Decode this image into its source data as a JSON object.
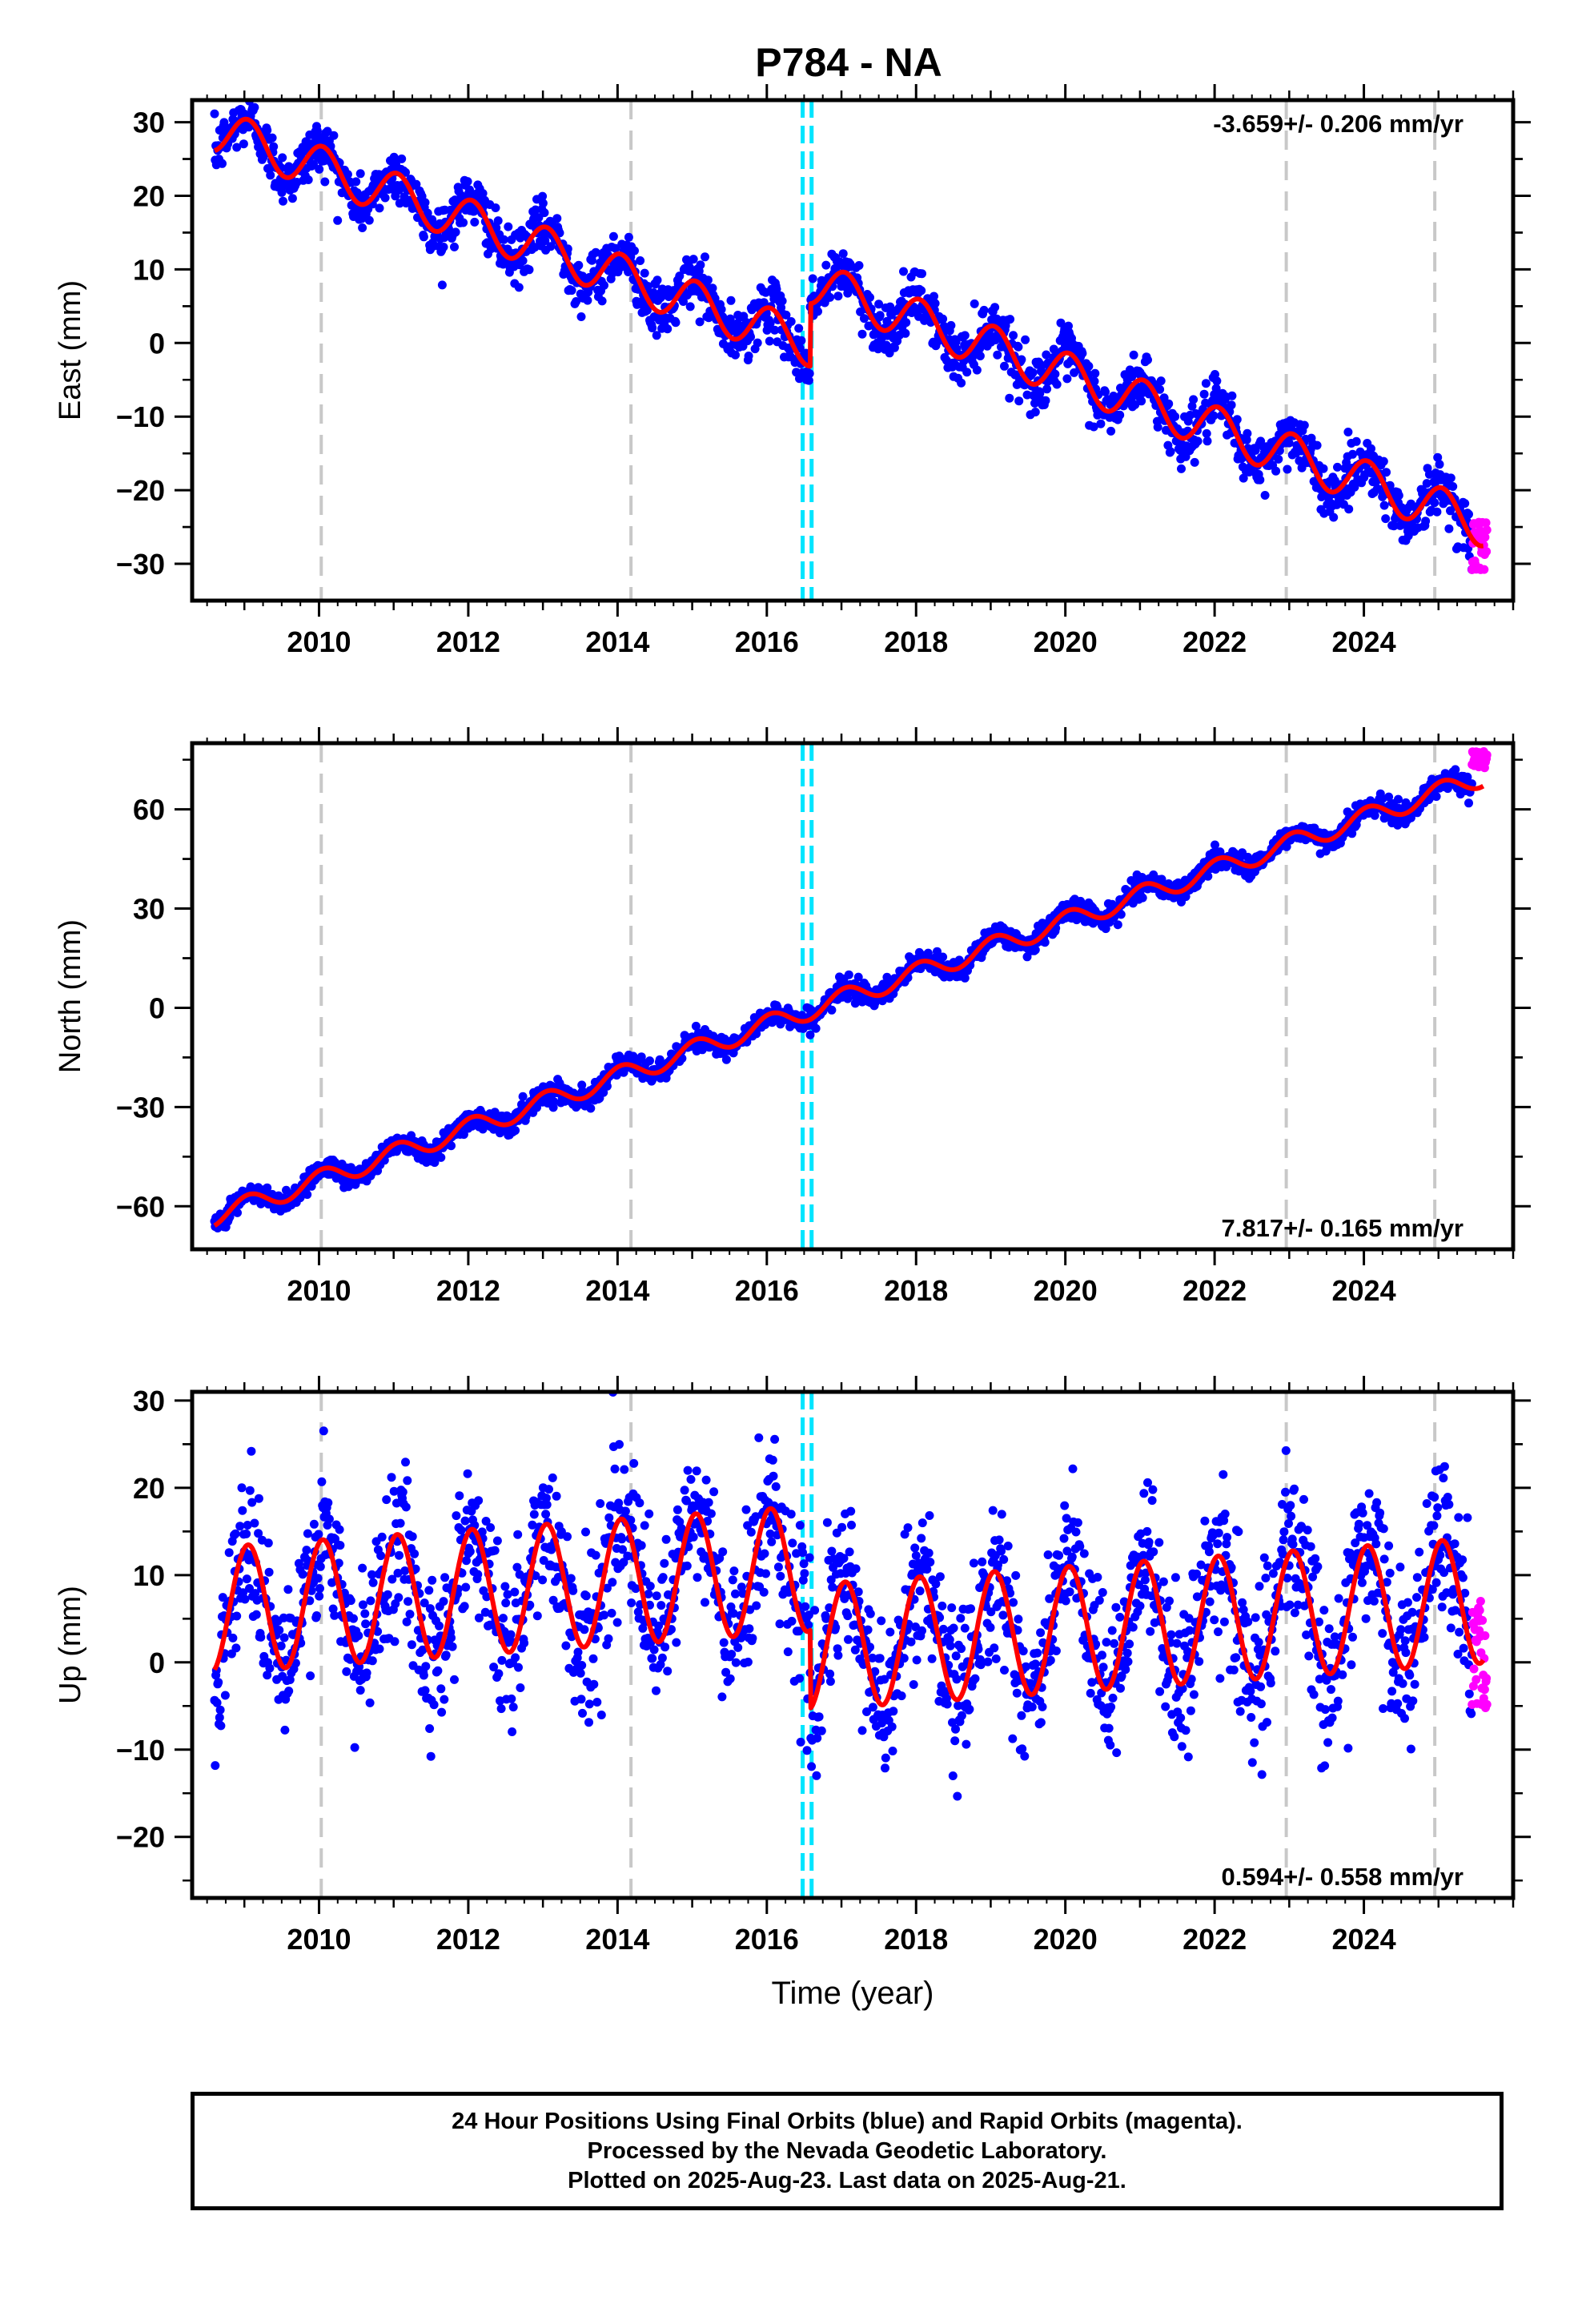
{
  "title": "P784 - NA",
  "colors": {
    "final_orbits": "#0000ff",
    "rapid_orbits": "#ff00ff",
    "model": "#ff0000",
    "antenna_change": "#c8c8c8",
    "equipment_change": "#00e5ff"
  },
  "footer": {
    "line1": "24 Hour Positions Using Final Orbits (blue) and Rapid Orbits (magenta).",
    "line2": "Processed by the Nevada Geodetic Laboratory.",
    "line3": "Plotted on 2025-Aug-23. Last data on 2025-Aug-21."
  },
  "chart_data": [
    {
      "type": "scatter",
      "component": "east",
      "ylabel": "East (mm)",
      "xlabel": "",
      "xlim": [
        2008.3,
        2026.0
      ],
      "ylim": [
        -35,
        33
      ],
      "xticks": [
        2010,
        2012,
        2014,
        2016,
        2018,
        2020,
        2022,
        2024
      ],
      "yticks": [
        -30,
        -20,
        -10,
        0,
        10,
        20,
        30
      ],
      "rate_text": "-3.659+/- 0.206 mm/yr",
      "rate_position": "top-right",
      "model": {
        "start": 2008.6,
        "end": 2025.6,
        "intercept": 29.0,
        "rate": -3.659,
        "annual_amp": 3.0,
        "annual_phase": 0.8,
        "offsets": [
          {
            "t": 2016.58,
            "dy": 8.5
          }
        ]
      },
      "scatter_spread": 1.8,
      "rapid": {
        "start": 2025.45,
        "end": 2025.65,
        "center": -27.5,
        "spread": 3.5
      },
      "vlines_gray": [
        2010.03,
        2014.18,
        2022.96,
        2024.95
      ],
      "vlines_cyan": [
        2016.48,
        2016.6
      ],
      "grid": false
    },
    {
      "type": "scatter",
      "component": "north",
      "ylabel": "North (mm)",
      "xlabel": "",
      "xlim": [
        2008.3,
        2026.0
      ],
      "ylim": [
        -73,
        80
      ],
      "xticks": [
        2010,
        2012,
        2014,
        2016,
        2018,
        2020,
        2022,
        2024
      ],
      "yticks": [
        -60,
        -30,
        0,
        30,
        60
      ],
      "rate_text": "7.817+/- 0.165 mm/yr",
      "rate_position": "bottom-right",
      "model": {
        "start": 2008.6,
        "end": 2025.6,
        "intercept": -63.0,
        "rate": 7.817,
        "annual_amp": 3.0,
        "annual_phase": 0.8,
        "offsets": []
      },
      "scatter_spread": 1.6,
      "rapid": {
        "start": 2025.45,
        "end": 2025.65,
        "center": 75.0,
        "spread": 2.5
      },
      "vlines_gray": [
        2010.03,
        2014.18,
        2022.96,
        2024.95
      ],
      "vlines_cyan": [
        2016.48,
        2016.6
      ],
      "grid": false
    },
    {
      "type": "scatter",
      "component": "up",
      "ylabel": "Up (mm)",
      "xlabel": "Time (year)",
      "xlim": [
        2008.3,
        2026.0
      ],
      "ylim": [
        -27,
        31
      ],
      "xticks": [
        2010,
        2012,
        2014,
        2016,
        2018,
        2020,
        2022,
        2024
      ],
      "yticks": [
        -20,
        -10,
        0,
        10,
        20,
        30
      ],
      "rate_text": "0.594+/- 0.558 mm/yr",
      "rate_position": "bottom-right",
      "model": {
        "start": 2008.6,
        "end": 2025.6,
        "intercept": 6.0,
        "rate": 0.594,
        "annual_amp": 7.2,
        "annual_phase": 0.8,
        "offsets": [
          {
            "t": 2016.58,
            "dy": -9.0
          }
        ]
      },
      "scatter_spread": 4.5,
      "rapid": {
        "start": 2025.45,
        "end": 2025.65,
        "center": 1.0,
        "spread": 6.5
      },
      "vlines_gray": [
        2010.03,
        2014.18,
        2022.96,
        2024.95
      ],
      "vlines_cyan": [
        2016.48,
        2016.6
      ],
      "grid": false
    }
  ]
}
